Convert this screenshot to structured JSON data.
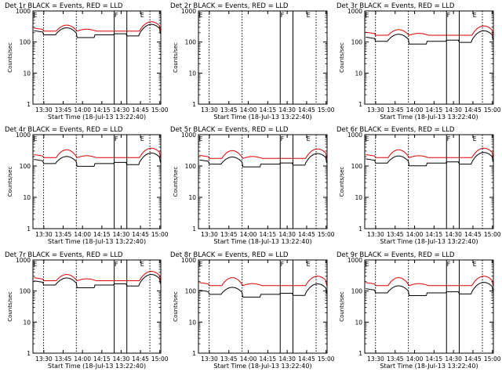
{
  "figure": {
    "colors": {
      "events": "#000000",
      "lld": "#e00000",
      "axis": "#000000",
      "background": "#ffffff"
    }
  },
  "chart_data": [
    {
      "type": "line",
      "title": "Det 1r BLACK = Events, RED = LLD",
      "xlabel": "Start Time (18-Jul-13 13:22:40)",
      "ylabel": "Counts/sec",
      "xticks": [
        "13:30",
        "13:45",
        "14:00",
        "14:15",
        "14:30",
        "14:45",
        "15:00"
      ],
      "yticks": [
        "1",
        "10",
        "100",
        "1000"
      ],
      "yscale": "log",
      "ylim": [
        1,
        1000
      ],
      "xlim_minutes": [
        13.33,
        99.33
      ],
      "dotted_lines_minutes": [
        20.5,
        42.5,
        92.0
      ],
      "solid_lines_minutes": [
        68.0,
        76.5
      ],
      "markers": [
        {
          "label": "E",
          "minute": 13.5
        },
        {
          "label": "F",
          "minute": 68.2
        },
        {
          "label": "E",
          "minute": 85.5
        }
      ],
      "events_level": 185,
      "lld_level": 225,
      "lld_peak": 350,
      "grid": false,
      "series": [
        {
          "name": "BLACK = Events",
          "color": "#000000"
        },
        {
          "name": "RED = LLD",
          "color": "#e00000"
        }
      ]
    },
    {
      "type": "line",
      "title": "Det 2r BLACK = Events, RED = LLD",
      "xlabel": "Start Time (18-Jul-13 13:22:40)",
      "ylabel": "Counts/sec",
      "xticks": [
        "13:30",
        "13:45",
        "14:00",
        "14:15",
        "14:30",
        "14:45",
        "15:00"
      ],
      "yticks": [
        "1",
        "10",
        "100",
        "1000"
      ],
      "yscale": "log",
      "ylim": [
        1,
        1000
      ],
      "xlim_minutes": [
        13.33,
        99.33
      ],
      "dotted_lines_minutes": [
        20.5,
        42.5,
        92.0
      ],
      "solid_lines_minutes": [
        68.0,
        76.5
      ],
      "markers": [
        {
          "label": "E",
          "minute": 13.5
        },
        {
          "label": "F",
          "minute": 68.2
        },
        {
          "label": "E",
          "minute": 85.5
        }
      ],
      "empty": true,
      "grid": false,
      "series": []
    },
    {
      "type": "line",
      "title": "Det 3r BLACK = Events, RED = LLD",
      "xlabel": "Start Time (18-Jul-13 13:22:40)",
      "ylabel": "Counts/sec",
      "xticks": [
        "13:30",
        "13:45",
        "14:00",
        "14:15",
        "14:30",
        "14:45",
        "15:00"
      ],
      "yticks": [
        "1",
        "10",
        "100",
        "1000"
      ],
      "yscale": "log",
      "ylim": [
        1,
        1000
      ],
      "xlim_minutes": [
        13.33,
        99.33
      ],
      "dotted_lines_minutes": [
        20.5,
        42.5,
        92.0
      ],
      "solid_lines_minutes": [
        68.0,
        76.5
      ],
      "markers": [
        {
          "label": "E",
          "minute": 13.5
        },
        {
          "label": "F",
          "minute": 68.2
        },
        {
          "label": "E",
          "minute": 85.5
        }
      ],
      "events_level": 115,
      "lld_level": 165,
      "lld_peak": 250,
      "grid": false,
      "series": [
        {
          "name": "BLACK = Events",
          "color": "#000000"
        },
        {
          "name": "RED = LLD",
          "color": "#e00000"
        }
      ]
    },
    {
      "type": "line",
      "title": "Det 4r BLACK = Events, RED = LLD",
      "xlabel": "Start Time (18-Jul-13 13:22:40)",
      "ylabel": "Counts/sec",
      "xticks": [
        "13:30",
        "13:45",
        "14:00",
        "14:15",
        "14:30",
        "14:45",
        "15:00"
      ],
      "yticks": [
        "1",
        "10",
        "100",
        "1000"
      ],
      "yscale": "log",
      "ylim": [
        1,
        1000
      ],
      "xlim_minutes": [
        13.33,
        99.33
      ],
      "dotted_lines_minutes": [
        20.5,
        42.5,
        92.0
      ],
      "solid_lines_minutes": [
        68.0,
        76.5
      ],
      "markers": [
        {
          "label": "E",
          "minute": 13.5
        },
        {
          "label": "F",
          "minute": 68.2
        },
        {
          "label": "E",
          "minute": 85.5
        }
      ],
      "events_level": 130,
      "lld_level": 185,
      "lld_peak": 330,
      "grid": false,
      "series": [
        {
          "name": "BLACK = Events",
          "color": "#000000"
        },
        {
          "name": "RED = LLD",
          "color": "#e00000"
        }
      ]
    },
    {
      "type": "line",
      "title": "Det 5r BLACK = Events, RED = LLD",
      "xlabel": "Start Time (18-Jul-13 13:22:40)",
      "ylabel": "Counts/sec",
      "xticks": [
        "13:30",
        "13:45",
        "14:00",
        "14:15",
        "14:30",
        "14:45",
        "15:00"
      ],
      "yticks": [
        "1",
        "10",
        "100",
        "1000"
      ],
      "yscale": "log",
      "ylim": [
        1,
        1000
      ],
      "xlim_minutes": [
        13.33,
        99.33
      ],
      "dotted_lines_minutes": [
        20.5,
        42.5,
        92.0
      ],
      "solid_lines_minutes": [
        68.0,
        76.5
      ],
      "markers": [
        {
          "label": "E",
          "minute": 13.5
        },
        {
          "label": "F",
          "minute": 68.2
        },
        {
          "label": "E",
          "minute": 85.5
        }
      ],
      "events_level": 125,
      "lld_level": 175,
      "lld_peak": 310,
      "grid": false,
      "series": [
        {
          "name": "BLACK = Events",
          "color": "#000000"
        },
        {
          "name": "RED = LLD",
          "color": "#e00000"
        }
      ]
    },
    {
      "type": "line",
      "title": "Det 6r BLACK = Events, RED = LLD",
      "xlabel": "Start Time (18-Jul-13 13:22:40)",
      "ylabel": "Counts/sec",
      "xticks": [
        "13:30",
        "13:45",
        "14:00",
        "14:15",
        "14:30",
        "14:45",
        "15:00"
      ],
      "yticks": [
        "1",
        "10",
        "100",
        "1000"
      ],
      "yscale": "log",
      "ylim": [
        1,
        1000
      ],
      "xlim_minutes": [
        13.33,
        99.33
      ],
      "dotted_lines_minutes": [
        20.5,
        42.5,
        92.0
      ],
      "solid_lines_minutes": [
        68.0,
        76.5
      ],
      "markers": [
        {
          "label": "E",
          "minute": 13.5
        },
        {
          "label": "F",
          "minute": 68.2
        },
        {
          "label": "E",
          "minute": 85.5
        }
      ],
      "events_level": 135,
      "lld_level": 185,
      "lld_peak": 330,
      "grid": false,
      "series": [
        {
          "name": "BLACK = Events",
          "color": "#000000"
        },
        {
          "name": "RED = LLD",
          "color": "#e00000"
        }
      ]
    },
    {
      "type": "line",
      "title": "Det 7r BLACK = Events, RED = LLD",
      "xlabel": "Start Time (18-Jul-13 13:22:40)",
      "ylabel": "Counts/sec",
      "xticks": [
        "13:30",
        "13:45",
        "14:00",
        "14:15",
        "14:30",
        "14:45",
        "15:00"
      ],
      "yticks": [
        "1",
        "10",
        "100",
        "1000"
      ],
      "yscale": "log",
      "ylim": [
        1,
        1000
      ],
      "xlim_minutes": [
        13.33,
        99.33
      ],
      "dotted_lines_minutes": [
        20.5,
        42.5,
        92.0
      ],
      "solid_lines_minutes": [
        68.0,
        76.5
      ],
      "markers": [
        {
          "label": "E",
          "minute": 13.5
        },
        {
          "label": "F",
          "minute": 68.2
        },
        {
          "label": "E",
          "minute": 85.5
        }
      ],
      "events_level": 170,
      "lld_level": 215,
      "lld_peak": 340,
      "grid": false,
      "series": [
        {
          "name": "BLACK = Events",
          "color": "#000000"
        },
        {
          "name": "RED = LLD",
          "color": "#e00000"
        }
      ]
    },
    {
      "type": "line",
      "title": "Det 8r BLACK = Events, RED = LLD",
      "xlabel": "Start Time (18-Jul-13 13:22:40)",
      "ylabel": "Counts/sec",
      "xticks": [
        "13:30",
        "13:45",
        "14:00",
        "14:15",
        "14:30",
        "14:45",
        "15:00"
      ],
      "yticks": [
        "1",
        "10",
        "100",
        "1000"
      ],
      "yscale": "log",
      "ylim": [
        1,
        1000
      ],
      "xlim_minutes": [
        13.33,
        99.33
      ],
      "dotted_lines_minutes": [
        20.5,
        42.5,
        92.0
      ],
      "solid_lines_minutes": [
        68.0,
        76.5
      ],
      "markers": [
        {
          "label": "E",
          "minute": 13.5
        },
        {
          "label": "F",
          "minute": 68.2
        },
        {
          "label": "E",
          "minute": 85.5
        }
      ],
      "events_level": 85,
      "lld_level": 150,
      "lld_peak": 270,
      "grid": false,
      "series": [
        {
          "name": "BLACK = Events",
          "color": "#000000"
        },
        {
          "name": "RED = LLD",
          "color": "#e00000"
        }
      ]
    },
    {
      "type": "line",
      "title": "Det 9r BLACK = Events, RED = LLD",
      "xlabel": "Start Time (18-Jul-13 13:22:40)",
      "ylabel": "Counts/sec",
      "xticks": [
        "13:30",
        "13:45",
        "14:00",
        "14:15",
        "14:30",
        "14:45",
        "15:00"
      ],
      "yticks": [
        "1",
        "10",
        "100",
        "1000"
      ],
      "yscale": "log",
      "ylim": [
        1,
        1000
      ],
      "xlim_minutes": [
        13.33,
        99.33
      ],
      "dotted_lines_minutes": [
        20.5,
        42.5,
        92.0
      ],
      "solid_lines_minutes": [
        68.0,
        76.5
      ],
      "markers": [
        {
          "label": "E",
          "minute": 13.5
        },
        {
          "label": "F",
          "minute": 68.2
        },
        {
          "label": "E",
          "minute": 85.5
        }
      ],
      "events_level": 95,
      "lld_level": 150,
      "lld_peak": 270,
      "grid": false,
      "series": [
        {
          "name": "BLACK = Events",
          "color": "#000000"
        },
        {
          "name": "RED = LLD",
          "color": "#e00000"
        }
      ]
    }
  ]
}
